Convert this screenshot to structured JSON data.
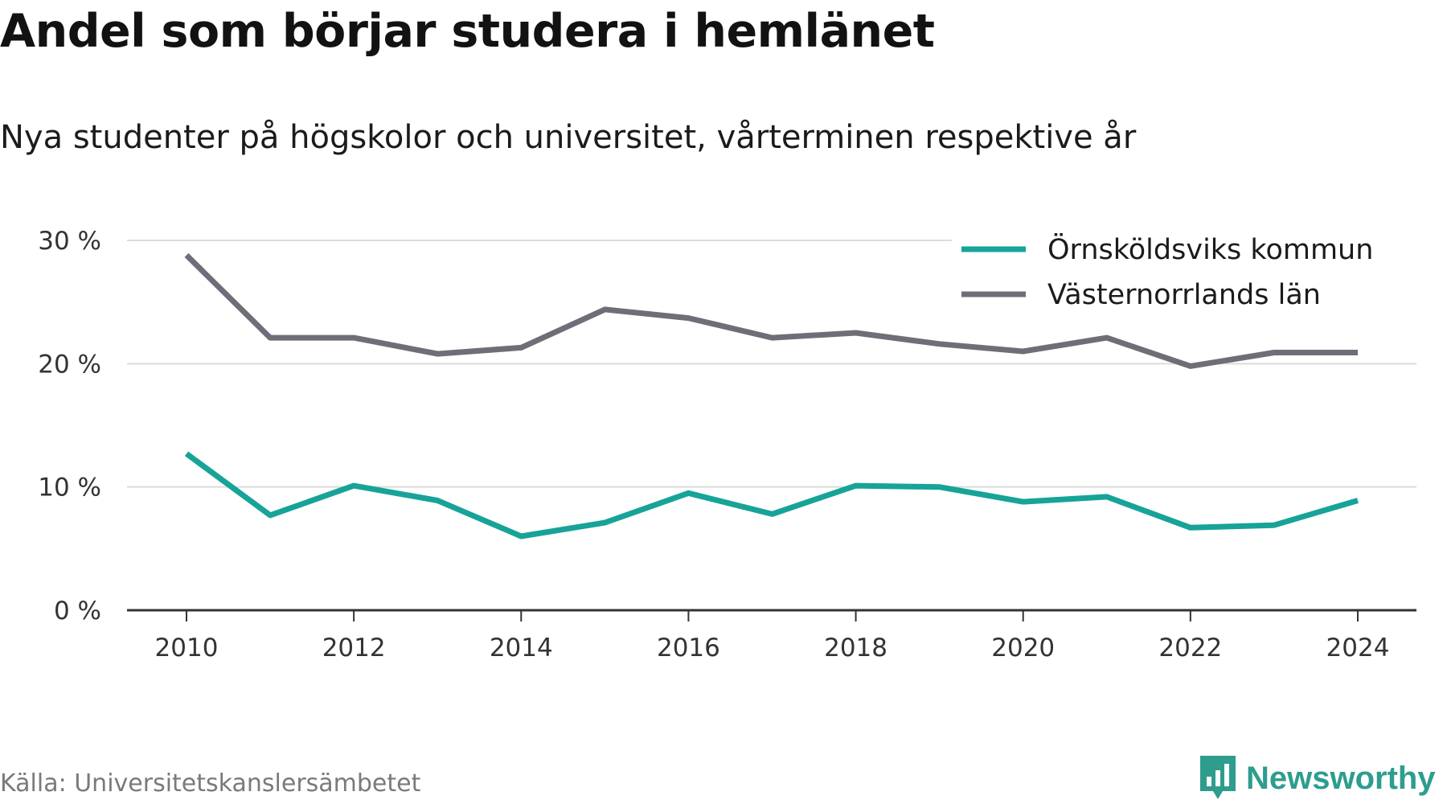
{
  "title": "Andel som börjar studera i hemlänet",
  "subtitle": "Nya studenter på högskolor och universitet, vårterminen respektive år",
  "source": "Källa: Universitetskanslersämbetet",
  "brand": {
    "name": "Newsworthy",
    "logo_icon": "bar-chart-badge-icon",
    "color": "#2e9d8e"
  },
  "chart_data": {
    "type": "line",
    "x": [
      2010,
      2011,
      2012,
      2013,
      2014,
      2015,
      2016,
      2017,
      2018,
      2019,
      2020,
      2021,
      2022,
      2023,
      2024
    ],
    "x_ticks": [
      "2010",
      "2012",
      "2014",
      "2016",
      "2018",
      "2020",
      "2022",
      "2024"
    ],
    "y_ticks": [
      "0 %",
      "10 %",
      "20 %",
      "30 %"
    ],
    "ylim": [
      0,
      30
    ],
    "grid": true,
    "legend_position": "top-right",
    "series": [
      {
        "name": "Örnsköldsviks kommun",
        "color": "#17a398",
        "values": [
          12.7,
          7.7,
          10.1,
          8.9,
          6.0,
          7.1,
          9.5,
          7.8,
          10.1,
          10.0,
          8.8,
          9.2,
          6.7,
          6.9,
          8.9
        ]
      },
      {
        "name": "Västernorrlands län",
        "color": "#6f6e78",
        "values": [
          28.8,
          22.1,
          22.1,
          20.8,
          21.3,
          24.4,
          23.7,
          22.1,
          22.5,
          21.6,
          21.0,
          22.1,
          19.8,
          20.9,
          20.9
        ]
      }
    ]
  }
}
